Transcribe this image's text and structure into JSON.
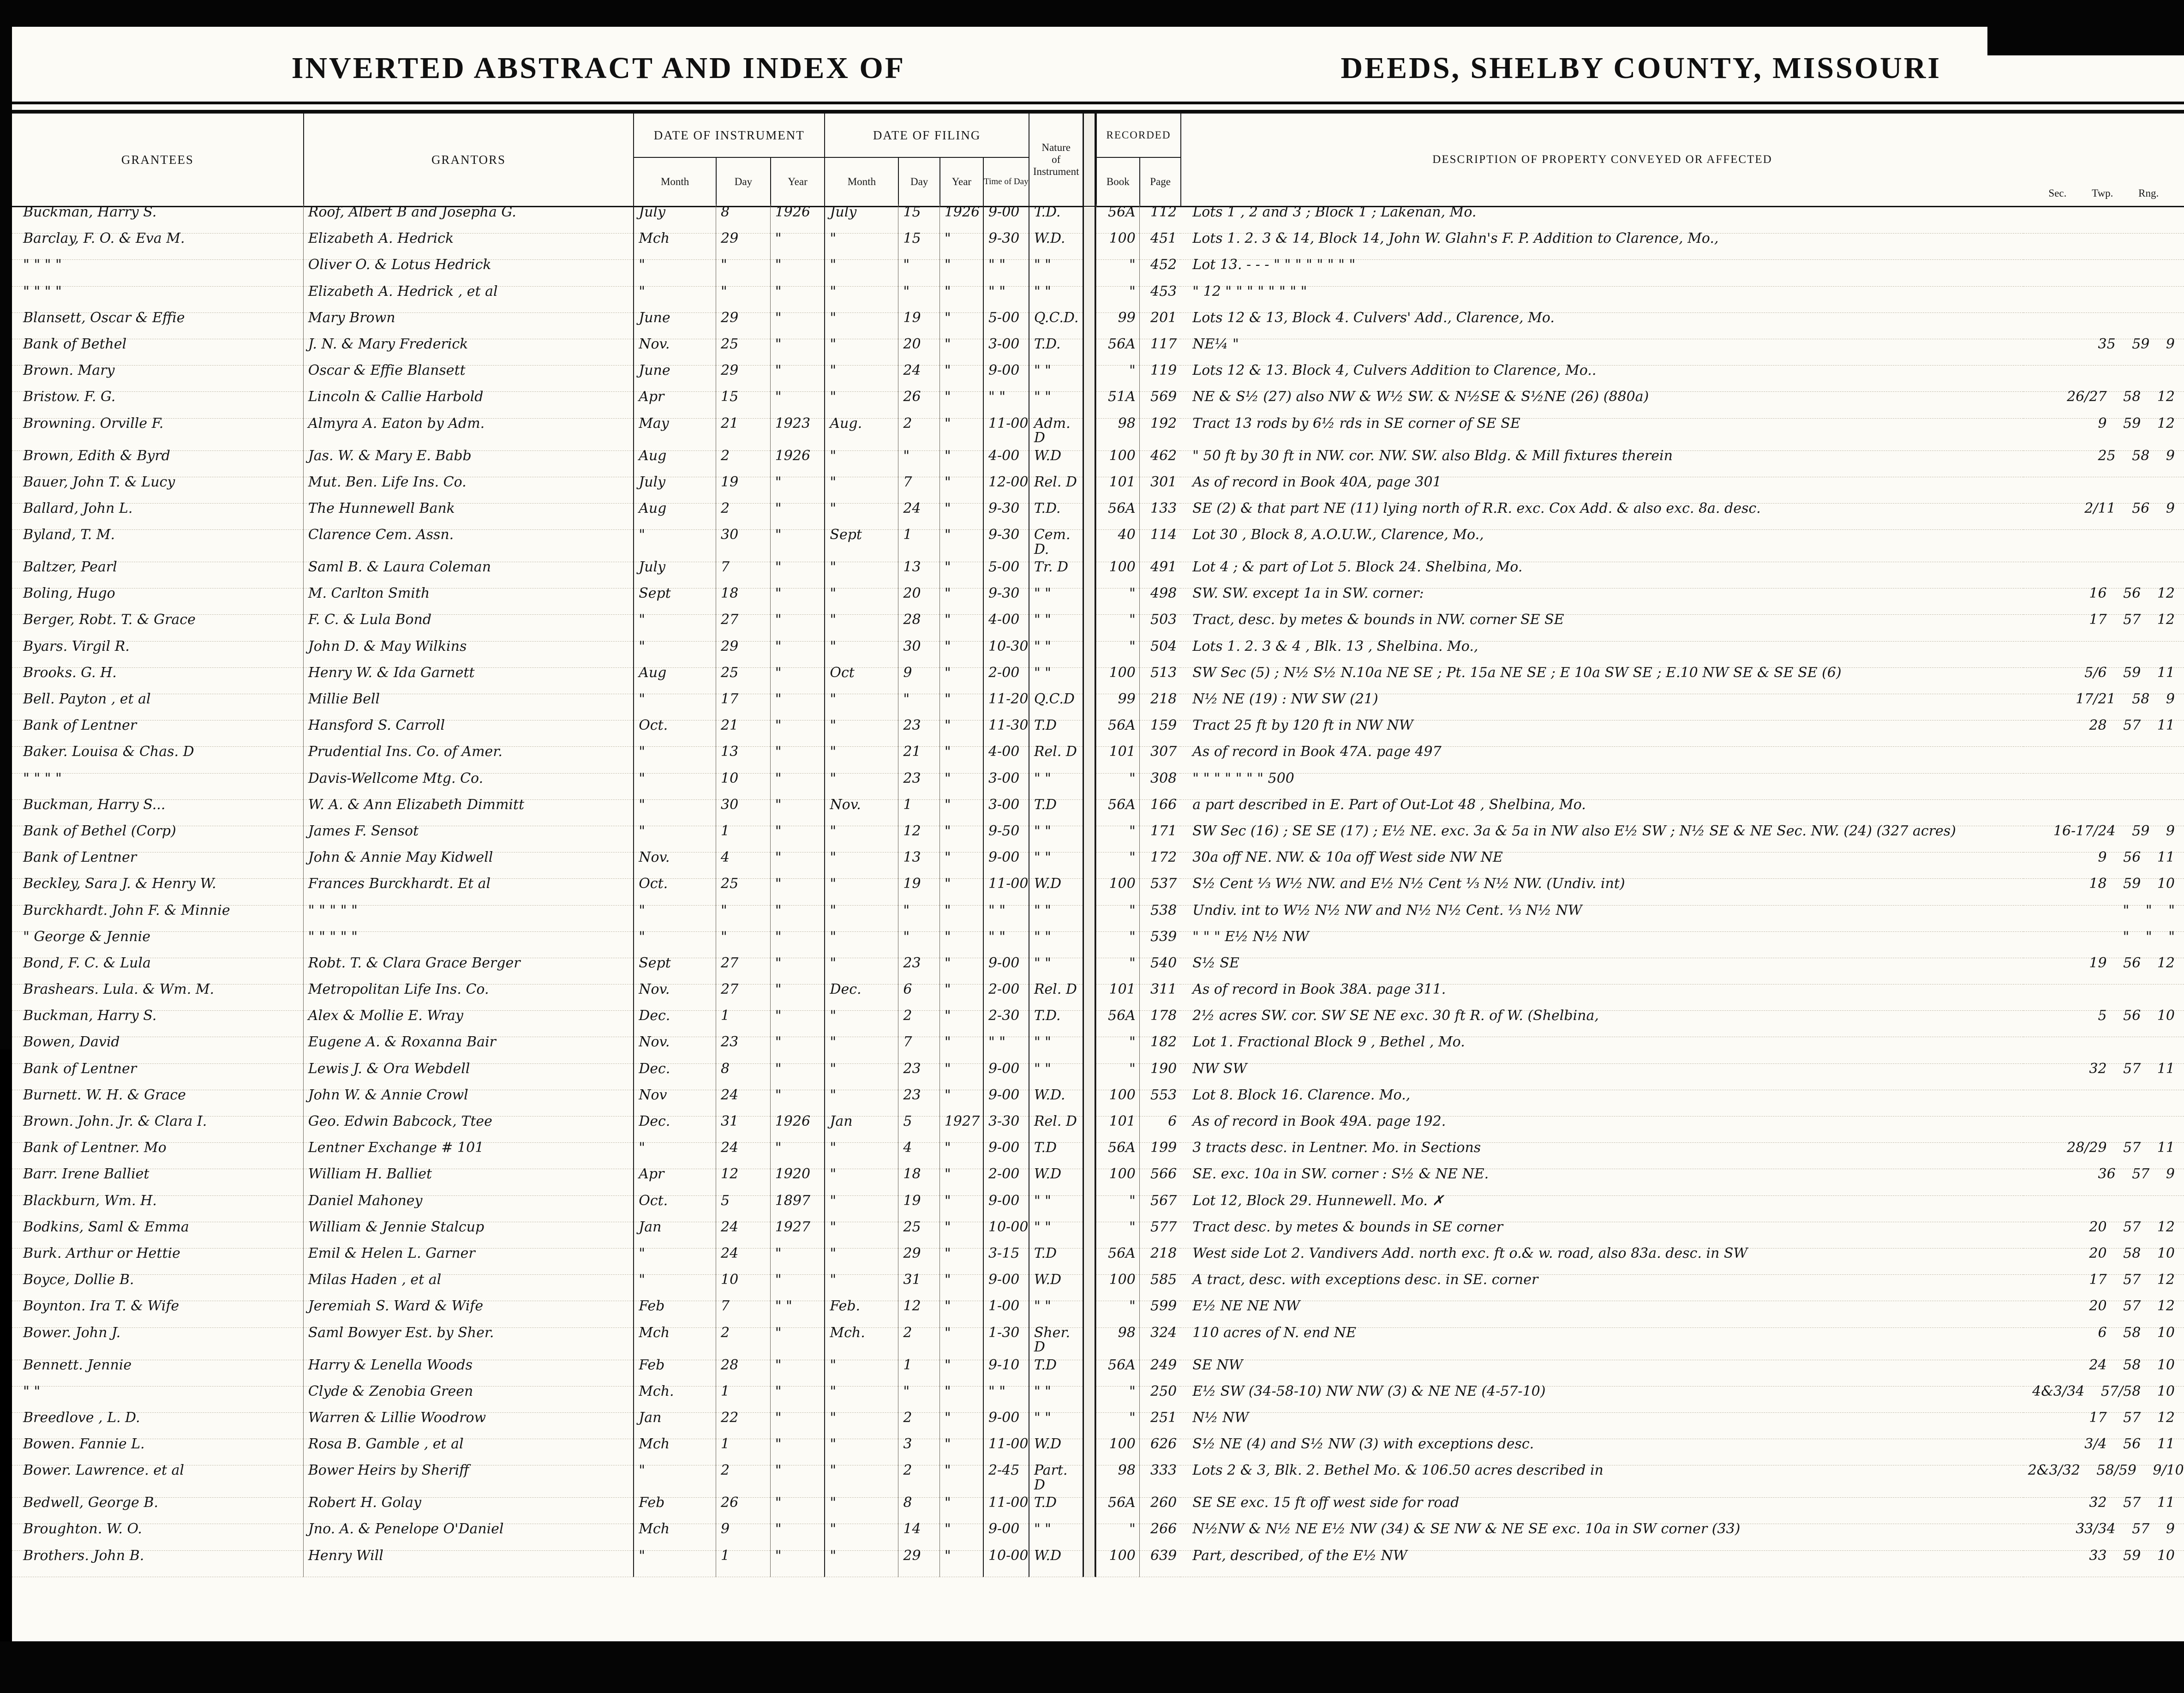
{
  "titles": {
    "left": "INVERTED ABSTRACT AND INDEX OF",
    "right": "DEEDS, SHELBY COUNTY, MISSOURI"
  },
  "headers": {
    "grantees": "GRANTEES",
    "grantors": "GRANTORS",
    "date_of_instrument": "DATE OF INSTRUMENT",
    "date_of_filing": "DATE OF FILING",
    "month": "Month",
    "day": "Day",
    "year": "Year",
    "time_of_day": "Time of Day",
    "nature_1": "Nature",
    "nature_2": "of",
    "nature_3": "Instrument",
    "recorded": "RECORDED",
    "book": "Book",
    "page": "Page",
    "description": "DESCRIPTION OF PROPERTY CONVEYED OR AFFECTED",
    "sec": "Sec.",
    "twp": "Twp.",
    "rng": "Rng."
  },
  "rows": [
    {
      "grantee": "Buckman, Harry S.",
      "grantor": "Roof, Albert B and Josepha G.",
      "im": "July",
      "idy": "8",
      "iy": "1926",
      "fm": "July",
      "fd": "15",
      "fy": "1926",
      "time": "9-00",
      "nature": "T.D.",
      "book": "56A",
      "pg": "112",
      "desc": "Lots 1 , 2 and 3 ; Block 1 ; Lakenan, Mo.",
      "sec": ""
    },
    {
      "grantee": "Barclay, F. O. & Eva M.",
      "grantor": "Elizabeth A. Hedrick",
      "im": "Mch",
      "idy": "29",
      "iy": "\"",
      "fm": "\"",
      "fd": "15",
      "fy": "\"",
      "time": "9-30",
      "nature": "W.D.",
      "book": "100",
      "pg": "451",
      "desc": "Lots 1. 2. 3 & 14, Block 14, John W. Glahn's F. P. Addition to Clarence, Mo.,",
      "sec": ""
    },
    {
      "grantee": "\"   \"   \"   \"",
      "grantor": "Oliver O. & Lotus Hedrick",
      "im": "\"",
      "idy": "\"",
      "iy": "\"",
      "fm": "\"",
      "fd": "\"",
      "fy": "\"",
      "time": "\" \"",
      "nature": "\" \"",
      "book": "\"",
      "pg": "452",
      "desc": "Lot 13.  -   -   -    \"    \"    \"    \"    \"    \"    \"    \"",
      "sec": ""
    },
    {
      "grantee": "\"   \"   \"   \"",
      "grantor": "Elizabeth A. Hedrick , et al",
      "im": "\"",
      "idy": "\"",
      "iy": "\"",
      "fm": "\"",
      "fd": "\"",
      "fy": "\"",
      "time": "\" \"",
      "nature": "\" \"",
      "book": "\"",
      "pg": "453",
      "desc": "\"    12      \"    \"    \"    \"    \"    \"    \"    \"",
      "sec": ""
    },
    {
      "grantee": "Blansett, Oscar & Effie",
      "grantor": "Mary Brown",
      "im": "June",
      "idy": "29",
      "iy": "\"",
      "fm": "\"",
      "fd": "19",
      "fy": "\"",
      "time": "5-00",
      "nature": "Q.C.D.",
      "book": "99",
      "pg": "201",
      "desc": "Lots 12 & 13, Block 4. Culvers' Add., Clarence, Mo.",
      "sec": ""
    },
    {
      "grantee": "Bank of Bethel",
      "grantor": "J. N. & Mary Frederick",
      "im": "Nov.",
      "idy": "25",
      "iy": "\"",
      "fm": "\"",
      "fd": "20",
      "fy": "\"",
      "time": "3-00",
      "nature": "T.D.",
      "book": "56A",
      "pg": "117",
      "desc": "NE¼   \"",
      "sec": "35 59 9"
    },
    {
      "grantee": "Brown. Mary",
      "grantor": "Oscar & Effie Blansett",
      "im": "June",
      "idy": "29",
      "iy": "\"",
      "fm": "\"",
      "fd": "24",
      "fy": "\"",
      "time": "9-00",
      "nature": "\" \"",
      "book": "\"",
      "pg": "119",
      "desc": "Lots 12 & 13. Block 4, Culvers Addition to Clarence, Mo..",
      "sec": ""
    },
    {
      "grantee": "Bristow. F. G.",
      "grantor": "Lincoln & Callie Harbold",
      "im": "Apr",
      "idy": "15",
      "iy": "\"",
      "fm": "\"",
      "fd": "26",
      "fy": "\"",
      "time": "\" \"",
      "nature": "\" \"",
      "book": "51A",
      "pg": "569",
      "desc": "NE & S½ (27) also NW & W½ SW. & N½SE & S½NE (26) (880a)",
      "sec": "26/27 58 12"
    },
    {
      "grantee": "Browning. Orville F.",
      "grantor": "Almyra A. Eaton by Adm.",
      "im": "May",
      "idy": "21",
      "iy": "1923",
      "fm": "Aug.",
      "fd": "2",
      "fy": "\"",
      "time": "11-00",
      "nature": "Adm. D",
      "book": "98",
      "pg": "192",
      "desc": "Tract 13 rods by 6½ rds in SE corner of SE SE",
      "sec": "9 59 12"
    },
    {
      "grantee": "Brown, Edith & Byrd",
      "grantor": "Jas. W. & Mary E. Babb",
      "im": "Aug",
      "idy": "2",
      "iy": "1926",
      "fm": "\"",
      "fd": "\"",
      "fy": "\"",
      "time": "4-00",
      "nature": "W.D",
      "book": "100",
      "pg": "462",
      "desc": "\"   50 ft by 30 ft in NW. cor. NW. SW. also Bldg. & Mill fixtures therein",
      "sec": "25 58 9"
    },
    {
      "grantee": "Bauer, John T. & Lucy",
      "grantor": "Mut. Ben. Life Ins. Co.",
      "im": "July",
      "idy": "19",
      "iy": "\"",
      "fm": "\"",
      "fd": "7",
      "fy": "\"",
      "time": "12-00",
      "nature": "Rel. D",
      "book": "101",
      "pg": "301",
      "desc": "As of record in Book 40A, page 301",
      "sec": ""
    },
    {
      "grantee": "Ballard, John L.",
      "grantor": "The Hunnewell Bank",
      "im": "Aug",
      "idy": "2",
      "iy": "\"",
      "fm": "\"",
      "fd": "24",
      "fy": "\"",
      "time": "9-30",
      "nature": "T.D.",
      "book": "56A",
      "pg": "133",
      "desc": "SE (2) & that part NE (11) lying north of R.R. exc. Cox Add. & also exc. 8a. desc.",
      "sec": "2/11 56 9"
    },
    {
      "grantee": "Byland, T. M.",
      "grantor": "Clarence Cem. Assn.",
      "im": "\"",
      "idy": "30",
      "iy": "\"",
      "fm": "Sept",
      "fd": "1",
      "fy": "\"",
      "time": "9-30",
      "nature": "Cem. D.",
      "book": "40",
      "pg": "114",
      "desc": "Lot 30 , Block 8, A.O.U.W., Clarence, Mo.,",
      "sec": ""
    },
    {
      "grantee": "Baltzer, Pearl",
      "grantor": "Saml B. & Laura Coleman",
      "im": "July",
      "idy": "7",
      "iy": "\"",
      "fm": "\"",
      "fd": "13",
      "fy": "\"",
      "time": "5-00",
      "nature": "Tr. D",
      "book": "100",
      "pg": "491",
      "desc": "Lot 4 ; & part of Lot 5. Block 24. Shelbina, Mo.",
      "sec": ""
    },
    {
      "grantee": "Boling, Hugo",
      "grantor": "M. Carlton Smith",
      "im": "Sept",
      "idy": "18",
      "iy": "\"",
      "fm": "\"",
      "fd": "20",
      "fy": "\"",
      "time": "9-30",
      "nature": "\" \"",
      "book": "\"",
      "pg": "498",
      "desc": "SW. SW. except 1a in SW. corner:",
      "sec": "16 56 12"
    },
    {
      "grantee": "Berger, Robt. T. & Grace",
      "grantor": "F. C. & Lula Bond",
      "im": "\"",
      "idy": "27",
      "iy": "\"",
      "fm": "\"",
      "fd": "28",
      "fy": "\"",
      "time": "4-00",
      "nature": "\" \"",
      "book": "\"",
      "pg": "503",
      "desc": "Tract, desc. by metes & bounds in NW. corner SE SE",
      "sec": "17 57 12"
    },
    {
      "grantee": "Byars. Virgil R.",
      "grantor": "John D. & May Wilkins",
      "im": "\"",
      "idy": "29",
      "iy": "\"",
      "fm": "\"",
      "fd": "30",
      "fy": "\"",
      "time": "10-30",
      "nature": "\" \"",
      "book": "\"",
      "pg": "504",
      "desc": "Lots 1. 2. 3 & 4 ,   Blk. 13 ,    Shelbina. Mo.,",
      "sec": ""
    },
    {
      "grantee": "Brooks. G. H.",
      "grantor": "Henry W. & Ida Garnett",
      "im": "Aug",
      "idy": "25",
      "iy": "\"",
      "fm": "Oct",
      "fd": "9",
      "fy": "\"",
      "time": "2-00",
      "nature": "\" \"",
      "book": "100",
      "pg": "513",
      "desc": "SW Sec (5) ; N½ S½ N.10a NE SE ; Pt. 15a NE SE ; E 10a SW SE ; E.10 NW SE & SE SE (6)",
      "sec": "5/6 59 11"
    },
    {
      "grantee": "Bell. Payton , et al",
      "grantor": "Millie Bell",
      "im": "\"",
      "idy": "17",
      "iy": "\"",
      "fm": "\"",
      "fd": "\"",
      "fy": "\"",
      "time": "11-20",
      "nature": "Q.C.D",
      "book": "99",
      "pg": "218",
      "desc": "N½ NE (19) :  NW SW (21)",
      "sec": "17/21 58 9"
    },
    {
      "grantee": "Bank of Lentner",
      "grantor": "Hansford S. Carroll",
      "im": "Oct.",
      "idy": "21",
      "iy": "\"",
      "fm": "\"",
      "fd": "23",
      "fy": "\"",
      "time": "11-30",
      "nature": "T.D",
      "book": "56A",
      "pg": "159",
      "desc": "Tract  25 ft by 120 ft in NW NW",
      "sec": "28 57 11"
    },
    {
      "grantee": "Baker. Louisa & Chas. D",
      "grantor": "Prudential Ins. Co. of Amer.",
      "im": "\"",
      "idy": "13",
      "iy": "\"",
      "fm": "\"",
      "fd": "21",
      "fy": "\"",
      "time": "4-00",
      "nature": "Rel. D",
      "book": "101",
      "pg": "307",
      "desc": "As of record in Book 47A. page 497",
      "sec": ""
    },
    {
      "grantee": "\"    \"    \"    \"",
      "grantor": "Davis-Wellcome Mtg. Co.",
      "im": "\"",
      "idy": "10",
      "iy": "\"",
      "fm": "\"",
      "fd": "23",
      "fy": "\"",
      "time": "3-00",
      "nature": "\" \"",
      "book": "\"",
      "pg": "308",
      "desc": "\"    \"    \"    \"    \"    \"    \"    500",
      "sec": ""
    },
    {
      "grantee": "Buckman, Harry S...",
      "grantor": "W. A. & Ann Elizabeth Dimmitt",
      "im": "\"",
      "idy": "30",
      "iy": "\"",
      "fm": "Nov.",
      "fd": "1",
      "fy": "\"",
      "time": "3-00",
      "nature": "T.D",
      "book": "56A",
      "pg": "166",
      "desc": "a part described in E. Part of Out-Lot 48 , Shelbina, Mo.",
      "sec": ""
    },
    {
      "grantee": "Bank of Bethel (Corp)",
      "grantor": "James F. Sensot",
      "im": "\"",
      "idy": "1",
      "iy": "\"",
      "fm": "\"",
      "fd": "12",
      "fy": "\"",
      "time": "9-50",
      "nature": "\" \"",
      "book": "\"",
      "pg": "171",
      "desc": "SW Sec (16) ; SE SE (17) ; E½ NE. exc. 3a & 5a in NW also E½ SW ; N½ SE & NE Sec. NW. (24) (327 acres)",
      "sec": "16-17/24 59 9"
    },
    {
      "grantee": "Bank of Lentner",
      "grantor": "John & Annie May Kidwell",
      "im": "Nov.",
      "idy": "4",
      "iy": "\"",
      "fm": "\"",
      "fd": "13",
      "fy": "\"",
      "time": "9-00",
      "nature": "\" \"",
      "book": "\"",
      "pg": "172",
      "desc": "30a off NE. NW. & 10a off West side NW NE",
      "sec": "9 56 11"
    },
    {
      "grantee": "Beckley, Sara J. & Henry W.",
      "grantor": "Frances Burckhardt. Et al",
      "im": "Oct.",
      "idy": "25",
      "iy": "\"",
      "fm": "\"",
      "fd": "19",
      "fy": "\"",
      "time": "11-00",
      "nature": "W.D",
      "book": "100",
      "pg": "537",
      "desc": "S½ Cent ⅓ W½ NW. and E½ N½ Cent ⅓ N½ NW.   (Undiv. int)",
      "sec": "18 59 10"
    },
    {
      "grantee": "Burckhardt. John F. & Minnie",
      "grantor": "\"    \"    \"    \"    \"",
      "im": "\"",
      "idy": "\"",
      "iy": "\"",
      "fm": "\"",
      "fd": "\"",
      "fy": "\"",
      "time": "\" \"",
      "nature": "\" \"",
      "book": "\"",
      "pg": "538",
      "desc": "Undiv. int to W½ N½ NW and N½ N½ Cent. ⅓ N½ NW",
      "sec": "\" \" \""
    },
    {
      "grantee": "\"      George & Jennie",
      "grantor": "\"    \"    \"    \"    \"",
      "im": "\"",
      "idy": "\"",
      "iy": "\"",
      "fm": "\"",
      "fd": "\"",
      "fy": "\"",
      "time": "\" \"",
      "nature": "\" \"",
      "book": "\"",
      "pg": "539",
      "desc": "\"    \"    \"     E½ N½ NW",
      "sec": "\" \" \""
    },
    {
      "grantee": "Bond, F. C. & Lula",
      "grantor": "Robt. T. & Clara Grace Berger",
      "im": "Sept",
      "idy": "27",
      "iy": "\"",
      "fm": "\"",
      "fd": "23",
      "fy": "\"",
      "time": "9-00",
      "nature": "\" \"",
      "book": "\"",
      "pg": "540",
      "desc": "S½ SE",
      "sec": "19 56 12"
    },
    {
      "grantee": "Brashears. Lula. & Wm. M.",
      "grantor": "Metropolitan Life Ins. Co.",
      "im": "Nov.",
      "idy": "27",
      "iy": "\"",
      "fm": "Dec.",
      "fd": "6",
      "fy": "\"",
      "time": "2-00",
      "nature": "Rel. D",
      "book": "101",
      "pg": "311",
      "desc": "As of record in Book 38A. page 311.",
      "sec": ""
    },
    {
      "grantee": "Buckman, Harry S.",
      "grantor": "Alex & Mollie E. Wray",
      "im": "Dec.",
      "idy": "1",
      "iy": "\"",
      "fm": "\"",
      "fd": "2",
      "fy": "\"",
      "time": "2-30",
      "nature": "T.D.",
      "book": "56A",
      "pg": "178",
      "desc": "2½ acres SW. cor. SW SE NE exc. 30 ft R. of W.   (Shelbina,",
      "sec": "5 56 10"
    },
    {
      "grantee": "Bowen, David",
      "grantor": "Eugene A. & Roxanna Bair",
      "im": "Nov.",
      "idy": "23",
      "iy": "\"",
      "fm": "\"",
      "fd": "7",
      "fy": "\"",
      "time": "\" \"",
      "nature": "\" \"",
      "book": "\"",
      "pg": "182",
      "desc": "Lot 1. Fractional Block 9 ,  Bethel , Mo.",
      "sec": ""
    },
    {
      "grantee": "Bank of Lentner",
      "grantor": "Lewis J. & Ora Webdell",
      "im": "Dec.",
      "idy": "8",
      "iy": "\"",
      "fm": "\"",
      "fd": "23",
      "fy": "\"",
      "time": "9-00",
      "nature": "\" \"",
      "book": "\"",
      "pg": "190",
      "desc": "NW SW",
      "sec": "32 57 11"
    },
    {
      "grantee": "Burnett. W. H. & Grace",
      "grantor": "John W. & Annie Crowl",
      "im": "Nov",
      "idy": "24",
      "iy": "\"",
      "fm": "\"",
      "fd": "23",
      "fy": "\"",
      "time": "9-00",
      "nature": "W.D.",
      "book": "100",
      "pg": "553",
      "desc": "Lot 8. Block 16.  Clarence. Mo.,",
      "sec": ""
    },
    {
      "grantee": "Brown. John. Jr. & Clara I.",
      "grantor": "Geo. Edwin Babcock, Ttee",
      "im": "Dec.",
      "idy": "31",
      "iy": "1926",
      "fm": "Jan",
      "fd": "5",
      "fy": "1927",
      "time": "3-30",
      "nature": "Rel. D",
      "book": "101",
      "pg": "6",
      "desc": "As of record in Book 49A. page 192.",
      "sec": ""
    },
    {
      "grantee": "Bank of Lentner. Mo",
      "grantor": "Lentner Exchange # 101",
      "im": "\"",
      "idy": "24",
      "iy": "\"",
      "fm": "\"",
      "fd": "4",
      "fy": "\"",
      "time": "9-00",
      "nature": "T.D",
      "book": "56A",
      "pg": "199",
      "desc": "3 tracts desc. in Lentner. Mo. in Sections",
      "sec": "28/29 57 11"
    },
    {
      "grantee": "Barr. Irene Balliet",
      "grantor": "William H. Balliet",
      "im": "Apr",
      "idy": "12",
      "iy": "1920",
      "fm": "\"",
      "fd": "18",
      "fy": "\"",
      "time": "2-00",
      "nature": "W.D",
      "book": "100",
      "pg": "566",
      "desc": "SE. exc. 10a in SW. corner :  S½ & NE NE.",
      "sec": "36 57 9"
    },
    {
      "grantee": "Blackburn, Wm. H.",
      "grantor": "Daniel Mahoney",
      "im": "Oct.",
      "idy": "5",
      "iy": "1897",
      "fm": "\"",
      "fd": "19",
      "fy": "\"",
      "time": "9-00",
      "nature": "\" \"",
      "book": "\"",
      "pg": "567",
      "desc": "Lot 12, Block 29.  Hunnewell. Mo.  ✗",
      "sec": ""
    },
    {
      "grantee": "Bodkins, Saml & Emma",
      "grantor": "William & Jennie Stalcup",
      "im": "Jan",
      "idy": "24",
      "iy": "1927",
      "fm": "\"",
      "fd": "25",
      "fy": "\"",
      "time": "10-00",
      "nature": "\" \"",
      "book": "\"",
      "pg": "577",
      "desc": "Tract desc. by metes & bounds in SE corner",
      "sec": "20 57 12"
    },
    {
      "grantee": "Burk. Arthur or Hettie",
      "grantor": "Emil & Helen L. Garner",
      "im": "\"",
      "idy": "24",
      "iy": "\"",
      "fm": "\"",
      "fd": "29",
      "fy": "\"",
      "time": "3-15",
      "nature": "T.D",
      "book": "56A",
      "pg": "218",
      "desc": "West side Lot 2. Vandivers Add. north exc. ft o.& w. road, also 83a. desc. in SW",
      "sec": "20 58 10"
    },
    {
      "grantee": "Boyce, Dollie B.",
      "grantor": "Milas Haden , et al",
      "im": "\"",
      "idy": "10",
      "iy": "\"",
      "fm": "\"",
      "fd": "31",
      "fy": "\"",
      "time": "9-00",
      "nature": "W.D",
      "book": "100",
      "pg": "585",
      "desc": "A tract, desc. with exceptions desc. in SE. corner",
      "sec": "17 57 12"
    },
    {
      "grantee": "Boynton. Ira T. & Wife",
      "grantor": "Jeremiah S. Ward & Wife",
      "im": "Feb",
      "idy": "7",
      "iy": "\" \"",
      "fm": "Feb.",
      "fd": "12",
      "fy": "\"",
      "time": "1-00",
      "nature": "\" \"",
      "book": "\"",
      "pg": "599",
      "desc": "E½ NE NE  NW",
      "sec": "20 57 12"
    },
    {
      "grantee": "Bower. John J.",
      "grantor": "Saml Bowyer Est. by Sher.",
      "im": "Mch",
      "idy": "2",
      "iy": "\"",
      "fm": "Mch.",
      "fd": "2",
      "fy": "\"",
      "time": "1-30",
      "nature": "Sher. D",
      "book": "98",
      "pg": "324",
      "desc": "110 acres  of N. end NE",
      "sec": "6 58 10"
    },
    {
      "grantee": "Bennett. Jennie",
      "grantor": "Harry & Lenella Woods",
      "im": "Feb",
      "idy": "28",
      "iy": "\"",
      "fm": "\"",
      "fd": "1",
      "fy": "\"",
      "time": "9-10",
      "nature": "T.D",
      "book": "56A",
      "pg": "249",
      "desc": "SE NW",
      "sec": "24 58 10"
    },
    {
      "grantee": "\"        \"",
      "grantor": "Clyde & Zenobia Green",
      "im": "Mch.",
      "idy": "1",
      "iy": "\"",
      "fm": "\"",
      "fd": "\"",
      "fy": "\"",
      "time": "\" \"",
      "nature": "\" \"",
      "book": "\"",
      "pg": "250",
      "desc": "E½ SW (34-58-10)  NW NW (3) & NE NE (4-57-10)",
      "sec": "4&3/34 57/58 10"
    },
    {
      "grantee": "Breedlove , L. D.",
      "grantor": "Warren & Lillie Woodrow",
      "im": "Jan",
      "idy": "22",
      "iy": "\"",
      "fm": "\"",
      "fd": "2",
      "fy": "\"",
      "time": "9-00",
      "nature": "\" \"",
      "book": "\"",
      "pg": "251",
      "desc": "N½ NW",
      "sec": "17 57 12"
    },
    {
      "grantee": "Bowen. Fannie L.",
      "grantor": "Rosa B. Gamble , et al",
      "im": "Mch",
      "idy": "1",
      "iy": "\"",
      "fm": "\"",
      "fd": "3",
      "fy": "\"",
      "time": "11-00",
      "nature": "W.D",
      "book": "100",
      "pg": "626",
      "desc": "S½ NE (4) and S½ NW (3) with exceptions desc.",
      "sec": "3/4 56 11"
    },
    {
      "grantee": "Bower. Lawrence. et al",
      "grantor": "Bower Heirs by Sheriff",
      "im": "\"",
      "idy": "2",
      "iy": "\"",
      "fm": "\"",
      "fd": "2",
      "fy": "\"",
      "time": "2-45",
      "nature": "Part. D",
      "book": "98",
      "pg": "333",
      "desc": "Lots 2 & 3, Blk. 2. Bethel Mo. & 106.50 acres described in",
      "sec": "2&3/32 58/59 9/10"
    },
    {
      "grantee": "Bedwell, George B.",
      "grantor": "Robert H. Golay",
      "im": "Feb",
      "idy": "26",
      "iy": "\"",
      "fm": "\"",
      "fd": "8",
      "fy": "\"",
      "time": "11-00",
      "nature": "T.D",
      "book": "56A",
      "pg": "260",
      "desc": "SE SE exc. 15 ft off west side for road",
      "sec": "32 57 11"
    },
    {
      "grantee": "Broughton. W. O.",
      "grantor": "Jno. A. & Penelope O'Daniel",
      "im": "Mch",
      "idy": "9",
      "iy": "\"",
      "fm": "\"",
      "fd": "14",
      "fy": "\"",
      "time": "9-00",
      "nature": "\" \"",
      "book": "\"",
      "pg": "266",
      "desc": "N½NW & N½ NE E½ NW (34) & SE NW & NE SE exc. 10a in SW corner (33)",
      "sec": "33/34 57 9"
    },
    {
      "grantee": "Brothers. John B.",
      "grantor": "Henry Will",
      "im": "\"",
      "idy": "1",
      "iy": "\"",
      "fm": "\"",
      "fd": "29",
      "fy": "\"",
      "time": "10-00",
      "nature": "W.D",
      "book": "100",
      "pg": "639",
      "desc": "Part, described, of the E½ NW",
      "sec": "33 59 10"
    }
  ]
}
